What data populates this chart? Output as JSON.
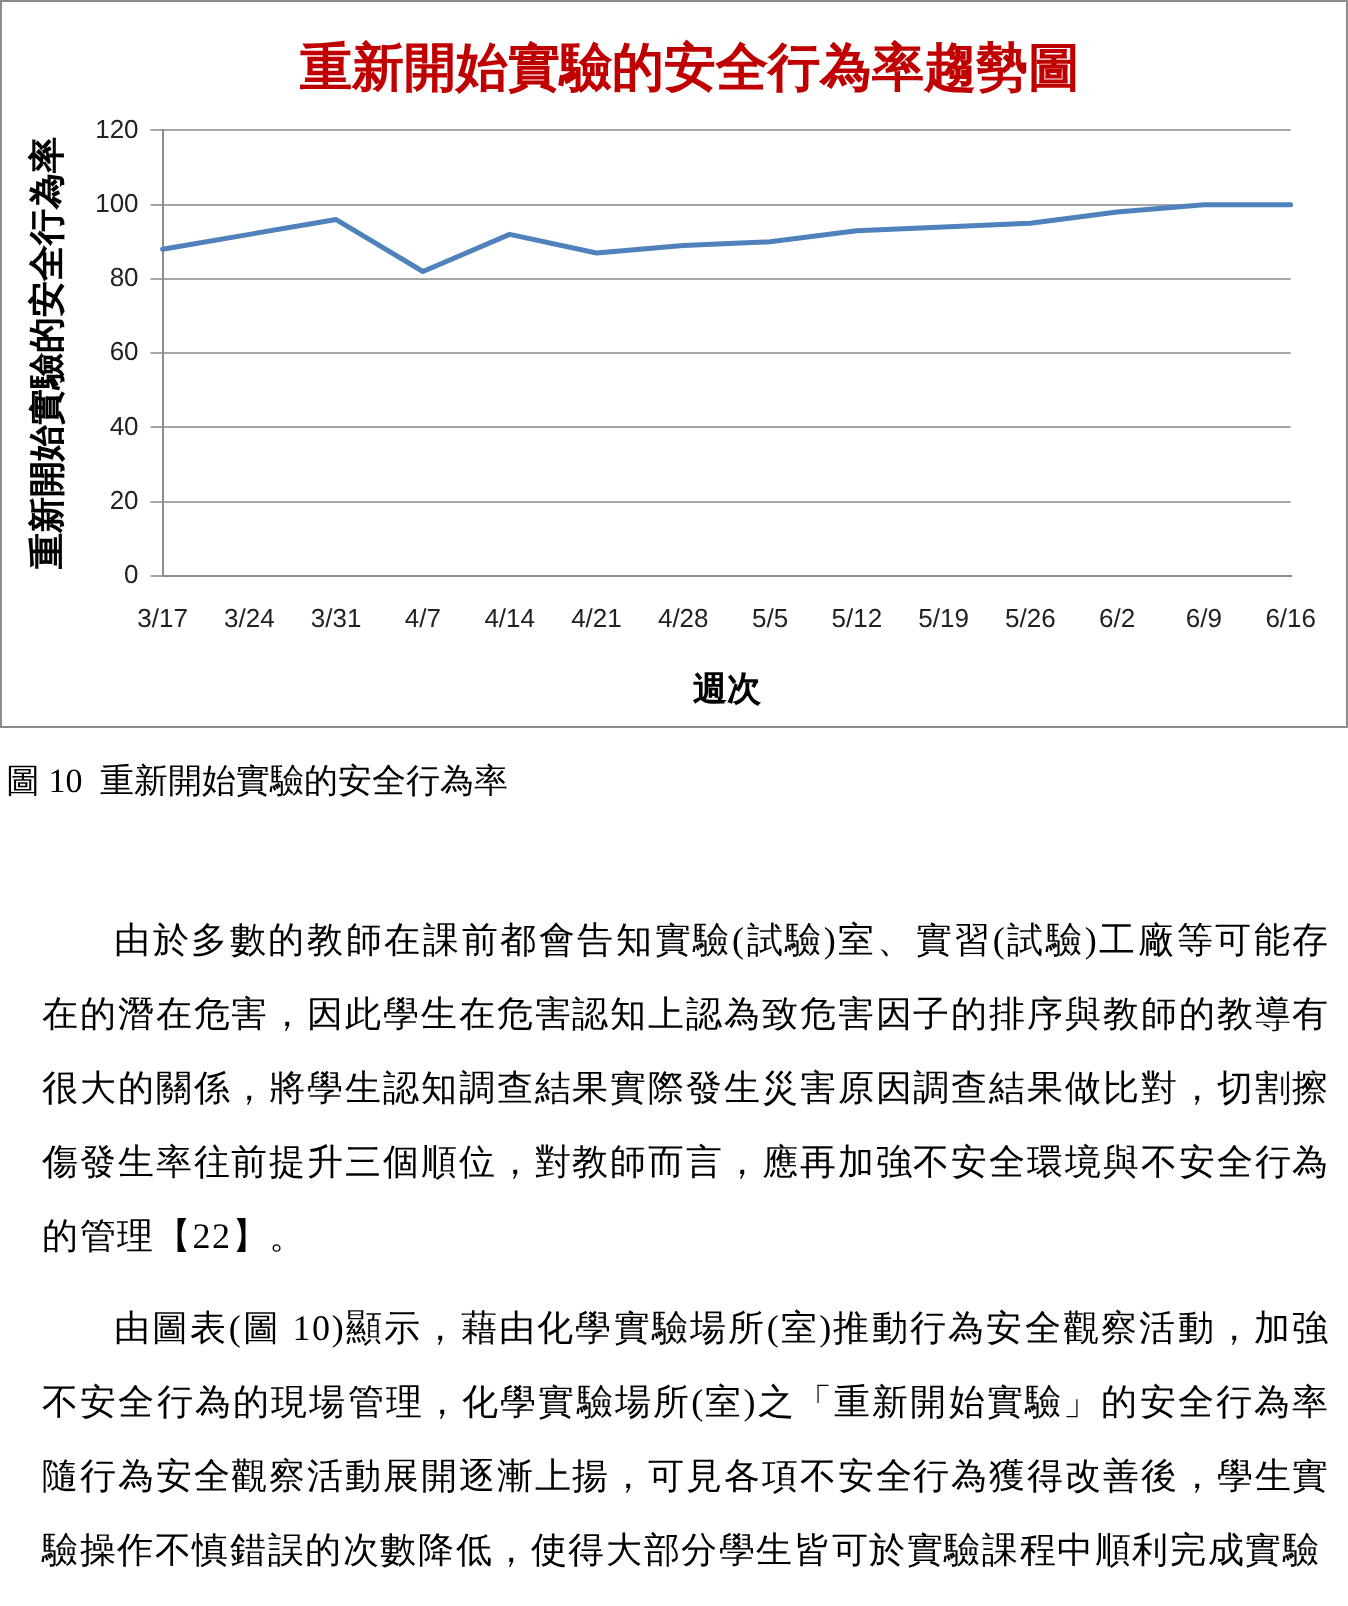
{
  "chart_data": {
    "type": "line",
    "title": "重新開始實驗的安全行為率趨勢圖",
    "xlabel": "週次",
    "ylabel": "重新開始實驗的安全行為率",
    "categories": [
      "3/17",
      "3/24",
      "3/31",
      "4/7",
      "4/14",
      "4/21",
      "4/28",
      "5/5",
      "5/12",
      "5/19",
      "5/26",
      "6/2",
      "6/9",
      "6/16"
    ],
    "values": [
      88,
      92,
      96,
      82,
      92,
      87,
      89,
      90,
      93,
      94,
      95,
      98,
      100,
      100
    ],
    "color": "#4f81bd",
    "ylim": [
      0,
      120
    ],
    "yticks": [
      0,
      20,
      40,
      60,
      80,
      100,
      120
    ],
    "grid": "y",
    "annotations": [
      "圖 10  重新開始實驗的安全行為率",
      "由於多數的教師在課前都會告知實驗(試驗)室、實習(試驗)工廠等可能存在的潛在危害，因此學生在危害認知上認為致危害因子的排序與教師的教導有很大的關係，將學生認知調查結果實際發生災害原因調查結果做比對，切割擦傷發生率往前提升三個順位，對教師而言，應再加強不安全環境與不安全行為的管理【22】。",
      "由圖表(圖 10)顯示，藉由化學實驗場所(室)推動行為安全觀察活動，加強不安全行為的現場管理，化學實驗場所(室)之「重新開始實驗」的安全行為率隨行為安全觀察活動展開逐漸上揚，可見各項不安全行為獲得改善後，學生實驗操作不慎錯誤的次數降低，使得大部分學生皆可於實驗課程中順利完成實驗"
    ]
  }
}
